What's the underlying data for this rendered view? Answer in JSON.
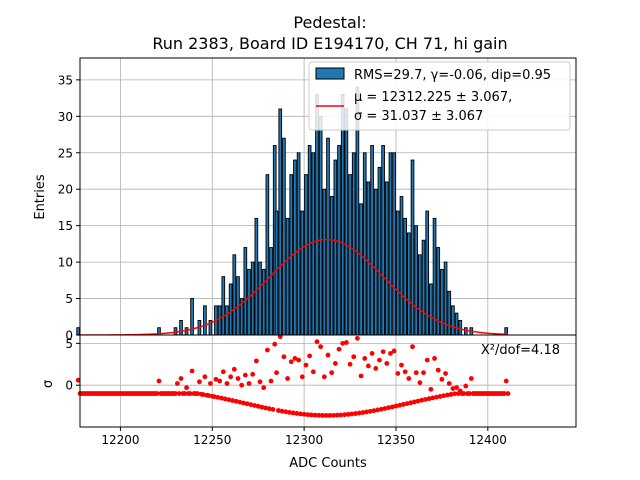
{
  "chart_data": [
    {
      "type": "bar",
      "title_line1": "Pedestal:",
      "title_line2": "Run 2383, Board ID E194170, CH 71, hi gain",
      "ylabel": "Entries",
      "ylim": [
        0,
        38
      ],
      "yticks": [
        0,
        5,
        10,
        15,
        20,
        25,
        30,
        35
      ],
      "xlim": [
        12178,
        12448
      ],
      "grid": true,
      "legend_position": "top-right",
      "legend": {
        "hist_label": "RMS=29.7, γ=-0.06, dip=0.95",
        "fit_label_line1": "μ = 12312.225 ± 3.067,",
        "fit_label_line2": "σ = 31.037 ± 3.067"
      },
      "series": [
        {
          "kind": "histogram",
          "bin_width": 1.5,
          "color": "#1f77b4",
          "edge_color": "#000000",
          "bins": [
            [
              12177,
              1
            ],
            [
              12221,
              1
            ],
            [
              12230,
              1
            ],
            [
              12233,
              2
            ],
            [
              12236,
              1
            ],
            [
              12239,
              5
            ],
            [
              12243,
              2
            ],
            [
              12246,
              4
            ],
            [
              12249,
              2
            ],
            [
              12252,
              4
            ],
            [
              12254,
              4
            ],
            [
              12256,
              8
            ],
            [
              12258,
              4
            ],
            [
              12260,
              7
            ],
            [
              12262,
              11
            ],
            [
              12264,
              8
            ],
            [
              12266,
              5
            ],
            [
              12268,
              12
            ],
            [
              12270,
              9
            ],
            [
              12272,
              10
            ],
            [
              12274,
              16
            ],
            [
              12276,
              10
            ],
            [
              12278,
              9
            ],
            [
              12280,
              22
            ],
            [
              12282,
              12
            ],
            [
              12284,
              26
            ],
            [
              12285,
              17
            ],
            [
              12287,
              31
            ],
            [
              12289,
              27
            ],
            [
              12291,
              16
            ],
            [
              12293,
              22
            ],
            [
              12295,
              24
            ],
            [
              12297,
              25
            ],
            [
              12299,
              17
            ],
            [
              12301,
              22
            ],
            [
              12303,
              26
            ],
            [
              12305,
              25
            ],
            [
              12307,
              33
            ],
            [
              12309,
              30
            ],
            [
              12311,
              20
            ],
            [
              12313,
              27
            ],
            [
              12315,
              19
            ],
            [
              12317,
              24
            ],
            [
              12319,
              26
            ],
            [
              12321,
              33
            ],
            [
              12323,
              31
            ],
            [
              12325,
              22
            ],
            [
              12327,
              25
            ],
            [
              12329,
              34
            ],
            [
              12331,
              18
            ],
            [
              12333,
              25
            ],
            [
              12335,
              21
            ],
            [
              12337,
              26
            ],
            [
              12339,
              20
            ],
            [
              12341,
              23
            ],
            [
              12343,
              26
            ],
            [
              12345,
              21
            ],
            [
              12347,
              25
            ],
            [
              12349,
              25
            ],
            [
              12351,
              17
            ],
            [
              12353,
              19
            ],
            [
              12355,
              16
            ],
            [
              12357,
              14
            ],
            [
              12359,
              24
            ],
            [
              12361,
              15
            ],
            [
              12363,
              11
            ],
            [
              12365,
              13
            ],
            [
              12367,
              17
            ],
            [
              12369,
              7
            ],
            [
              12371,
              16
            ],
            [
              12373,
              12
            ],
            [
              12375,
              9
            ],
            [
              12377,
              10
            ],
            [
              12379,
              6
            ],
            [
              12381,
              4
            ],
            [
              12383,
              3
            ],
            [
              12385,
              2
            ],
            [
              12388,
              1
            ],
            [
              12391,
              1
            ],
            [
              12410,
              1
            ]
          ]
        },
        {
          "kind": "gaussian_fit",
          "color": "#ff0000",
          "mu": 12312.225,
          "sigma": 31.037,
          "amplitude": 13.1
        }
      ]
    },
    {
      "type": "scatter",
      "ylabel": "σ",
      "xlabel": "ADC Counts",
      "ylim": [
        -5,
        6
      ],
      "yticks": [
        0,
        5
      ],
      "xlim": [
        12178,
        12448
      ],
      "xticks": [
        12200,
        12250,
        12300,
        12350,
        12400
      ],
      "grid": true,
      "annotation": "X²/dof=4.18",
      "series": [
        {
          "kind": "residual_points",
          "color": "#ff0000",
          "x_start": 12177,
          "x_end": 12411,
          "x_step": 1,
          "note": "baseline points follow -(fit value)/sqrt(fit value) for empty bins",
          "filled_points": [
            [
              12177,
              0.6
            ],
            [
              12221,
              0.5
            ],
            [
              12231,
              0.2
            ],
            [
              12233,
              0.8
            ],
            [
              12236,
              -0.3
            ],
            [
              12239,
              1.7
            ],
            [
              12243,
              0.4
            ],
            [
              12246,
              1.0
            ],
            [
              12249,
              0.2
            ],
            [
              12252,
              0.7
            ],
            [
              12254,
              0.5
            ],
            [
              12256,
              1.6
            ],
            [
              12258,
              0.2
            ],
            [
              12260,
              1.0
            ],
            [
              12262,
              1.9
            ],
            [
              12264,
              0.8
            ],
            [
              12266,
              0.0
            ],
            [
              12268,
              1.2
            ],
            [
              12270,
              0.2
            ],
            [
              12272,
              1.3
            ],
            [
              12274,
              2.9
            ],
            [
              12276,
              0.4
            ],
            [
              12278,
              -0.3
            ],
            [
              12280,
              4.2
            ],
            [
              12282,
              0.5
            ],
            [
              12284,
              4.9
            ],
            [
              12285,
              1.5
            ],
            [
              12287,
              5.8
            ],
            [
              12289,
              3.4
            ],
            [
              12291,
              0.8
            ],
            [
              12293,
              2.8
            ],
            [
              12295,
              3.2
            ],
            [
              12297,
              3.0
            ],
            [
              12299,
              1.0
            ],
            [
              12301,
              2.4
            ],
            [
              12303,
              3.5
            ],
            [
              12305,
              1.6
            ],
            [
              12307,
              5.2
            ],
            [
              12309,
              4.6
            ],
            [
              12311,
              1.0
            ],
            [
              12313,
              3.6
            ],
            [
              12315,
              1.5
            ],
            [
              12317,
              2.6
            ],
            [
              12319,
              4.3
            ],
            [
              12321,
              5.0
            ],
            [
              12323,
              5.1
            ],
            [
              12325,
              2.5
            ],
            [
              12327,
              3.4
            ],
            [
              12329,
              5.6
            ],
            [
              12331,
              1.1
            ],
            [
              12333,
              3.2
            ],
            [
              12335,
              2.3
            ],
            [
              12337,
              3.8
            ],
            [
              12339,
              2.0
            ],
            [
              12341,
              3.0
            ],
            [
              12343,
              4.0
            ],
            [
              12345,
              2.6
            ],
            [
              12347,
              3.8
            ],
            [
              12349,
              4.1
            ],
            [
              12351,
              1.4
            ],
            [
              12353,
              2.4
            ],
            [
              12355,
              1.6
            ],
            [
              12357,
              0.8
            ],
            [
              12359,
              4.6
            ],
            [
              12361,
              1.5
            ],
            [
              12363,
              0.3
            ],
            [
              12365,
              1.5
            ],
            [
              12367,
              3.0
            ],
            [
              12369,
              -0.5
            ],
            [
              12371,
              3.2
            ],
            [
              12373,
              1.8
            ],
            [
              12375,
              0.7
            ],
            [
              12377,
              1.4
            ],
            [
              12379,
              0.2
            ],
            [
              12381,
              -0.4
            ],
            [
              12383,
              -0.3
            ],
            [
              12385,
              -0.7
            ],
            [
              12388,
              -0.1
            ],
            [
              12391,
              0.8
            ],
            [
              12410,
              0.5
            ]
          ]
        }
      ]
    }
  ]
}
